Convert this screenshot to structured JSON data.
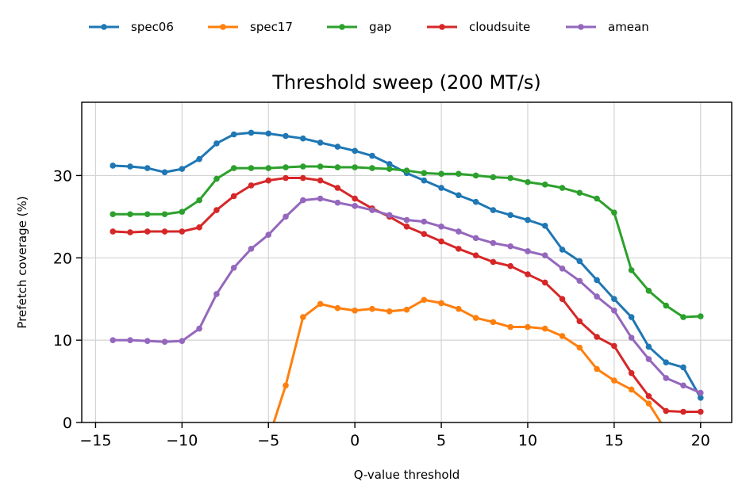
{
  "chart_data": {
    "type": "line",
    "title": "Threshold sweep (200 MT/s)",
    "xlabel": "Q-value threshold",
    "ylabel": "Prefetch coverage (%)",
    "xlim": [
      -15.8,
      21.8
    ],
    "ylim": [
      0,
      38.9
    ],
    "xticks": [
      -15,
      -10,
      -5,
      0,
      5,
      10,
      15,
      20
    ],
    "yticks": [
      0,
      10,
      20,
      30
    ],
    "xtick_labels": [
      "−15",
      "−10",
      "−5",
      "0",
      "5",
      "10",
      "15",
      "20"
    ],
    "ytick_labels": [
      "0",
      "10",
      "20",
      "30"
    ],
    "grid": true,
    "legend": {
      "placement": "top-left, outside above plot",
      "ncol": 5
    },
    "x": [
      -14,
      -13,
      -12,
      -11,
      -10,
      -9,
      -8,
      -7,
      -6,
      -5,
      -4,
      -3,
      -2,
      -1,
      0,
      1,
      2,
      3,
      4,
      5,
      6,
      7,
      8,
      9,
      10,
      11,
      12,
      13,
      14,
      15,
      16,
      17,
      18,
      19,
      20
    ],
    "series": [
      {
        "name": "spec06",
        "color": "#1f77b4",
        "values": [
          31.2,
          31.1,
          30.9,
          30.4,
          30.8,
          32.0,
          33.9,
          35.0,
          35.2,
          35.1,
          34.8,
          34.5,
          34.0,
          33.5,
          33.0,
          32.4,
          31.4,
          30.3,
          29.4,
          28.5,
          27.6,
          26.8,
          25.8,
          25.2,
          24.6,
          23.9,
          21.0,
          19.6,
          17.3,
          15.0,
          12.8,
          9.2,
          7.3,
          6.7,
          3.0
        ]
      },
      {
        "name": "spec17",
        "color": "#ff7f0e",
        "values": [
          null,
          null,
          null,
          null,
          null,
          null,
          null,
          null,
          null,
          -2.0,
          4.5,
          12.8,
          14.4,
          13.9,
          13.6,
          13.8,
          13.5,
          13.7,
          14.9,
          14.5,
          13.8,
          12.7,
          12.2,
          11.6,
          11.6,
          11.4,
          10.5,
          9.1,
          6.5,
          5.1,
          4.0,
          2.3,
          -1.0,
          null,
          null
        ]
      },
      {
        "name": "gap",
        "color": "#2ca02c",
        "values": [
          25.3,
          25.3,
          25.3,
          25.3,
          25.6,
          27.0,
          29.6,
          30.9,
          30.9,
          30.9,
          31.0,
          31.1,
          31.1,
          31.0,
          31.0,
          30.9,
          30.8,
          30.6,
          30.3,
          30.2,
          30.2,
          30.0,
          29.8,
          29.7,
          29.2,
          28.9,
          28.5,
          27.9,
          27.2,
          25.5,
          18.5,
          16.0,
          14.2,
          12.8,
          12.9
        ]
      },
      {
        "name": "cloudsuite",
        "color": "#d62728",
        "values": [
          23.2,
          23.1,
          23.2,
          23.2,
          23.2,
          23.7,
          25.8,
          27.5,
          28.8,
          29.4,
          29.7,
          29.7,
          29.4,
          28.5,
          27.2,
          26.0,
          25.0,
          23.8,
          22.9,
          22.0,
          21.1,
          20.3,
          19.5,
          19.0,
          18.0,
          17.0,
          15.0,
          12.3,
          10.4,
          9.3,
          6.0,
          3.2,
          1.4,
          1.3,
          1.3
        ]
      },
      {
        "name": "amean",
        "color": "#9467bd",
        "values": [
          10.0,
          10.0,
          9.9,
          9.8,
          9.9,
          11.4,
          15.6,
          18.8,
          21.1,
          22.8,
          25.0,
          27.0,
          27.2,
          26.7,
          26.3,
          25.8,
          25.2,
          24.6,
          24.4,
          23.8,
          23.2,
          22.4,
          21.8,
          21.4,
          20.8,
          20.3,
          18.7,
          17.2,
          15.3,
          13.6,
          10.3,
          7.7,
          5.4,
          4.5,
          3.6
        ]
      }
    ]
  }
}
